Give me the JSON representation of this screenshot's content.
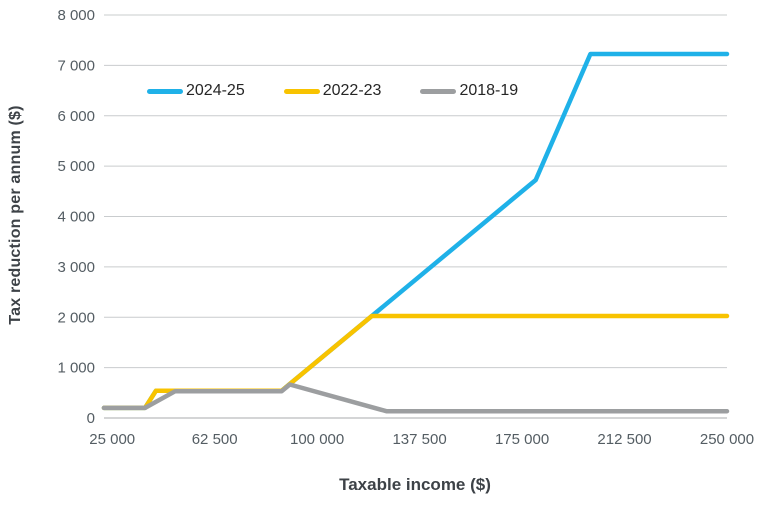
{
  "chart_data": {
    "type": "line",
    "title": "",
    "xlabel": "Taxable income ($)",
    "ylabel": "Tax reduction per annum ($)",
    "xlim": [
      22000,
      250000
    ],
    "ylim": [
      0,
      8000
    ],
    "grid": "horizontal-only",
    "legend_position": "top-inside",
    "x_ticks": [
      {
        "v": 25000,
        "label": "25 000"
      },
      {
        "v": 62500,
        "label": "62 500"
      },
      {
        "v": 100000,
        "label": "100 000"
      },
      {
        "v": 137500,
        "label": "137 500"
      },
      {
        "v": 175000,
        "label": "175 000"
      },
      {
        "v": 212500,
        "label": "212 500"
      },
      {
        "v": 250000,
        "label": "250 000"
      }
    ],
    "y_ticks": [
      {
        "v": 0,
        "label": "0"
      },
      {
        "v": 1000,
        "label": "1 000"
      },
      {
        "v": 2000,
        "label": "2 000"
      },
      {
        "v": 3000,
        "label": "3 000"
      },
      {
        "v": 4000,
        "label": "4 000"
      },
      {
        "v": 5000,
        "label": "5 000"
      },
      {
        "v": 6000,
        "label": "6 000"
      },
      {
        "v": 7000,
        "label": "7 000"
      },
      {
        "v": 8000,
        "label": "8 000"
      }
    ],
    "series": [
      {
        "name": "2024-25",
        "color": "#1FB1E8",
        "points": [
          [
            22000,
            200
          ],
          [
            37000,
            200
          ],
          [
            41000,
            540
          ],
          [
            87000,
            540
          ],
          [
            90000,
            675
          ],
          [
            120000,
            2025
          ],
          [
            180000,
            4725
          ],
          [
            200000,
            7225
          ],
          [
            250000,
            7225
          ]
        ]
      },
      {
        "name": "2022-23",
        "color": "#F8C300",
        "points": [
          [
            22000,
            200
          ],
          [
            37000,
            200
          ],
          [
            41000,
            540
          ],
          [
            87000,
            540
          ],
          [
            90000,
            675
          ],
          [
            120000,
            2025
          ],
          [
            250000,
            2025
          ]
        ]
      },
      {
        "name": "2018-19",
        "color": "#9C9EA0",
        "points": [
          [
            22000,
            200
          ],
          [
            37000,
            200
          ],
          [
            48000,
            530
          ],
          [
            87000,
            530
          ],
          [
            90000,
            665
          ],
          [
            125333,
            135
          ],
          [
            250000,
            135
          ]
        ]
      }
    ]
  },
  "colors": {
    "background": "#FFFFFF",
    "gridline": "#C9CCCE",
    "zero_axis_line": "#A8ABAE",
    "tick_text": "#545D63",
    "axis_title_text": "#3D4247",
    "legend_text": "#262626"
  }
}
